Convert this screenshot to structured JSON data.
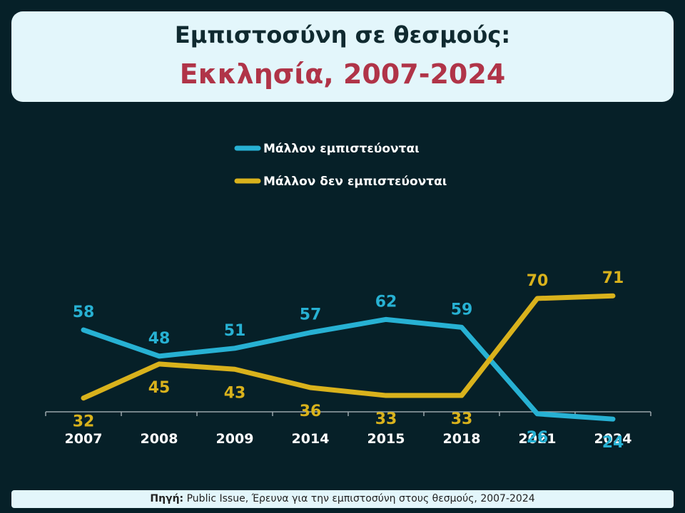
{
  "header": {
    "title_line1": "Εμπιστοσύνη σε θεσμούς:",
    "title_line2": "Εκκλησία, 2007-2024"
  },
  "source": {
    "label": "Πηγή:",
    "text": "Public Issue, Έρευνα για την εμπιστοσύνη στους θεσμούς, 2007-2024"
  },
  "chart_data": {
    "type": "line",
    "categories": [
      "2007",
      "2008",
      "2009",
      "2014",
      "2015",
      "2018",
      "2021",
      "2024"
    ],
    "series": [
      {
        "name": "Μάλλον εμπιστεύονται",
        "color": "#27b1d3",
        "values": [
          58,
          48,
          51,
          57,
          62,
          59,
          26,
          24
        ]
      },
      {
        "name": "Μάλλον δεν εμπιστεύονται",
        "color": "#d9b21c",
        "values": [
          32,
          45,
          43,
          36,
          33,
          33,
          70,
          71
        ]
      }
    ],
    "legend_position": "top-center",
    "grid": false
  }
}
